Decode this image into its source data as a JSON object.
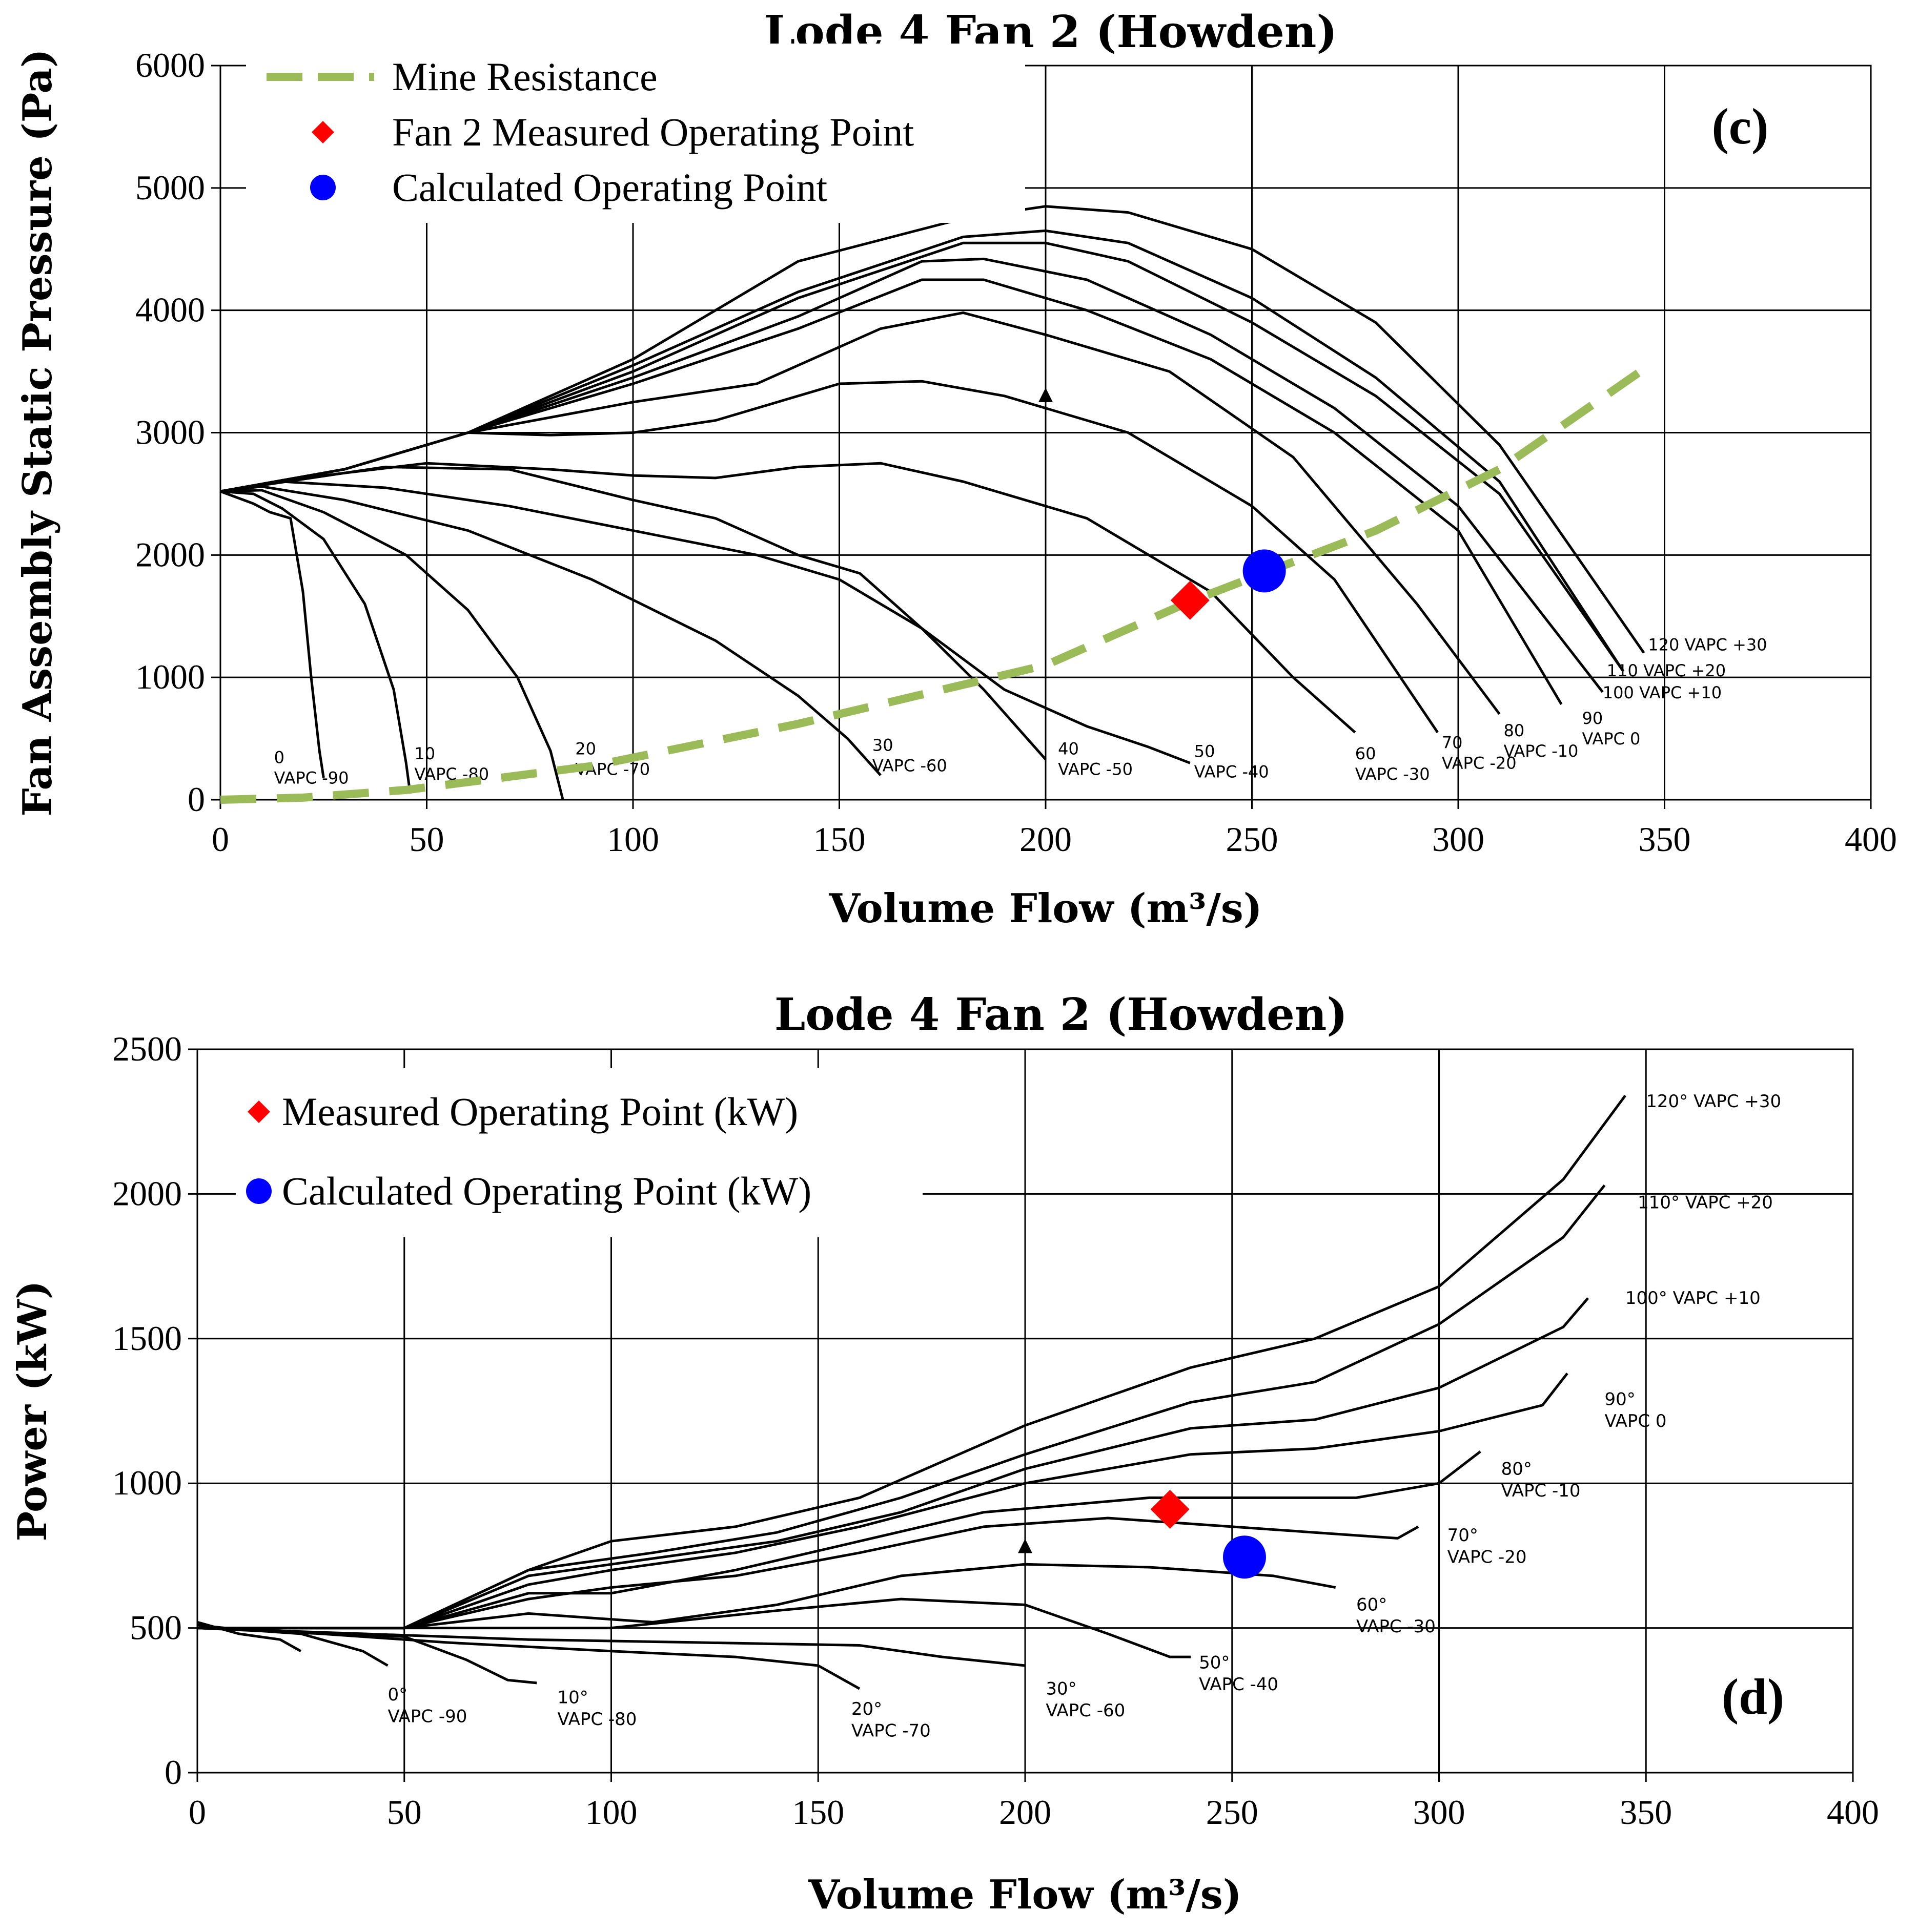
{
  "chart_data": [
    {
      "type": "line",
      "panel_label": "(c)",
      "title": "Lode 4 Fan 2 (Howden)",
      "xlabel": "Volume Flow (m³/s)",
      "ylabel": "Fan Assembly Static Pressure (Pa)",
      "xlim": [
        0,
        400
      ],
      "ylim": [
        0,
        6000
      ],
      "xticks": [
        "0",
        "50",
        "100",
        "150",
        "200",
        "250",
        "300",
        "350",
        "400"
      ],
      "yticks": [
        "0",
        "1000",
        "2000",
        "3000",
        "4000",
        "5000",
        "6000"
      ],
      "grid": true,
      "legend_position": "top-left",
      "legend": [
        {
          "label": "Mine Resistance",
          "marker": "dashed-line",
          "color": "#9bbb59"
        },
        {
          "label": "Fan 2 Measured Operating Point",
          "marker": "diamond",
          "color": "#ff0000"
        },
        {
          "label": "Calculated Operating Point",
          "marker": "circle",
          "color": "#0000ff"
        }
      ],
      "mine_resistance": {
        "x": [
          0,
          20,
          45,
          90,
          140,
          200,
          235,
          255,
          280,
          310,
          345
        ],
        "y": [
          0,
          17,
          80,
          275,
          620,
          1100,
          1620,
          1880,
          2200,
          2700,
          3520
        ],
        "color": "#9bbb59"
      },
      "measured_point": {
        "x": 235,
        "y": 1630,
        "color": "#ff0000"
      },
      "calculated_point": {
        "x": 253,
        "y": 1870,
        "color": "#0000ff"
      },
      "stall_marker": {
        "x": 200,
        "y": 3300
      },
      "series": [
        {
          "label_lines": [
            "0",
            "VAPC -90"
          ],
          "x": [
            0,
            8,
            12,
            17,
            20,
            22,
            24,
            25
          ],
          "y": [
            2520,
            2420,
            2350,
            2300,
            1700,
            1000,
            400,
            180
          ]
        },
        {
          "label_lines": [
            "10",
            "VAPC -80"
          ],
          "x": [
            0,
            8,
            15,
            25,
            35,
            42,
            45,
            46
          ],
          "y": [
            2520,
            2500,
            2380,
            2130,
            1600,
            900,
            300,
            50
          ]
        },
        {
          "label_lines": [
            "20",
            "VAPC -70"
          ],
          "x": [
            0,
            10,
            25,
            45,
            60,
            72,
            80,
            83
          ],
          "y": [
            2520,
            2530,
            2350,
            2000,
            1550,
            1000,
            400,
            0
          ]
        },
        {
          "label_lines": [
            "30",
            "VAPC -60"
          ],
          "x": [
            0,
            10,
            30,
            60,
            90,
            120,
            140,
            152,
            160
          ],
          "y": [
            2520,
            2560,
            2450,
            2200,
            1800,
            1300,
            850,
            500,
            200
          ]
        },
        {
          "label_lines": [
            "40",
            "VAPC -50"
          ],
          "x": [
            0,
            15,
            40,
            70,
            100,
            130,
            150,
            170,
            185,
            200
          ],
          "y": [
            2520,
            2600,
            2550,
            2400,
            2200,
            2000,
            1800,
            1400,
            900,
            330
          ]
        },
        {
          "label_lines": [
            "50",
            "VAPC -40"
          ],
          "x": [
            0,
            20,
            40,
            70,
            100,
            120,
            140,
            155,
            170,
            190,
            210,
            225,
            235
          ],
          "y": [
            2520,
            2620,
            2720,
            2700,
            2450,
            2300,
            2000,
            1850,
            1400,
            900,
            600,
            430,
            300
          ]
        },
        {
          "label_lines": [
            "60",
            "VAPC -30"
          ],
          "x": [
            0,
            25,
            50,
            80,
            100,
            120,
            140,
            160,
            180,
            210,
            240,
            260,
            275
          ],
          "y": [
            2520,
            2650,
            2750,
            2700,
            2650,
            2630,
            2720,
            2750,
            2600,
            2300,
            1700,
            1000,
            550
          ]
        },
        {
          "label_lines": [
            "70",
            "VAPC -20"
          ],
          "x": [
            0,
            30,
            60,
            80,
            100,
            120,
            150,
            170,
            190,
            220,
            250,
            270,
            295
          ],
          "y": [
            2520,
            2700,
            3000,
            2980,
            3000,
            3100,
            3400,
            3420,
            3300,
            3000,
            2400,
            1800,
            550
          ]
        },
        {
          "label_lines": [
            "80",
            "VAPC -10"
          ],
          "x": [
            0,
            30,
            60,
            100,
            130,
            160,
            180,
            200,
            230,
            260,
            290,
            310
          ],
          "y": [
            2520,
            2700,
            3000,
            3250,
            3400,
            3850,
            3980,
            3800,
            3500,
            2800,
            1600,
            700
          ]
        },
        {
          "label_lines": [
            "90",
            "VAPC 0"
          ],
          "x": [
            0,
            30,
            60,
            100,
            140,
            170,
            185,
            210,
            240,
            270,
            300,
            325
          ],
          "y": [
            2520,
            2700,
            3000,
            3400,
            3850,
            4250,
            4250,
            4000,
            3600,
            3000,
            2200,
            780
          ]
        },
        {
          "label_lines": [
            "100 VAPC +10"
          ],
          "x": [
            0,
            30,
            60,
            100,
            140,
            170,
            185,
            210,
            240,
            270,
            300,
            335
          ],
          "y": [
            2520,
            2700,
            3000,
            3450,
            3950,
            4400,
            4420,
            4250,
            3800,
            3200,
            2400,
            880
          ]
        },
        {
          "label_lines": [
            "110 VAPC +20"
          ],
          "x": [
            0,
            30,
            60,
            100,
            140,
            180,
            200,
            220,
            250,
            280,
            310,
            340
          ],
          "y": [
            2520,
            2700,
            3000,
            3500,
            4100,
            4550,
            4550,
            4400,
            3900,
            3300,
            2500,
            1050
          ]
        },
        {
          "label_lines": [
            "110 VAPC +20"
          ],
          "x": [
            0,
            30,
            60,
            100,
            140,
            180,
            200,
            220,
            250,
            280,
            310,
            340
          ],
          "y": [
            2520,
            2700,
            3000,
            3550,
            4150,
            4600,
            4650,
            4550,
            4100,
            3450,
            2600,
            1050
          ]
        },
        {
          "label_lines": [
            "120 VAPC +30"
          ],
          "x": [
            0,
            30,
            60,
            100,
            140,
            180,
            200,
            220,
            250,
            280,
            310,
            345
          ],
          "y": [
            2520,
            2700,
            3000,
            3600,
            4400,
            4750,
            4850,
            4800,
            4500,
            3900,
            2900,
            1200
          ]
        }
      ],
      "curve_label_positions": [
        {
          "x": 13,
          "y": 300
        },
        {
          "x": 47,
          "y": 330
        },
        {
          "x": 86,
          "y": 370
        },
        {
          "x": 158,
          "y": 400
        },
        {
          "x": 203,
          "y": 370
        },
        {
          "x": 236,
          "y": 350
        },
        {
          "x": 275,
          "y": 330
        },
        {
          "x": 296,
          "y": 420
        },
        {
          "x": 311,
          "y": 520
        },
        {
          "x": 330,
          "y": 620
        },
        {
          "x": 335,
          "y": 830
        },
        {
          "x": 336,
          "y": 1010
        },
        {
          "x": 336,
          "y": 1010
        },
        {
          "x": 346,
          "y": 1220
        }
      ]
    },
    {
      "type": "line",
      "panel_label": "(d)",
      "title": "Lode 4 Fan 2 (Howden)",
      "xlabel": "Volume Flow (m³/s)",
      "ylabel": "Power (kW)",
      "xlim": [
        0,
        400
      ],
      "ylim": [
        0,
        2500
      ],
      "xticks": [
        "0",
        "50",
        "100",
        "150",
        "200",
        "250",
        "300",
        "350",
        "400"
      ],
      "yticks": [
        "0",
        "500",
        "1000",
        "1500",
        "2000",
        "2500"
      ],
      "grid": true,
      "legend_position": "top-left",
      "legend": [
        {
          "label": "Measured Operating Point (kW)",
          "marker": "diamond",
          "color": "#ff0000"
        },
        {
          "label": "Calculated Operating Point (kW)",
          "marker": "circle",
          "color": "#0000ff"
        }
      ],
      "measured_point": {
        "x": 235,
        "y": 910,
        "color": "#ff0000"
      },
      "calculated_point": {
        "x": 253,
        "y": 745,
        "color": "#0000ff"
      },
      "stall_marker": {
        "x": 200,
        "y": 780
      },
      "series": [
        {
          "label_lines": [
            "0°",
            "VAPC -90"
          ],
          "x": [
            0,
            10,
            20,
            25
          ],
          "y": [
            520,
            480,
            460,
            420
          ]
        },
        {
          "label_lines": [
            "0°",
            "VAPC -90"
          ],
          "x": [
            0,
            10,
            25,
            40,
            46
          ],
          "y": [
            510,
            495,
            480,
            420,
            370
          ]
        },
        {
          "label_lines": [
            "10°",
            "VAPC -80"
          ],
          "x": [
            0,
            20,
            50,
            65,
            75,
            82
          ],
          "y": [
            500,
            490,
            470,
            390,
            320,
            310
          ]
        },
        {
          "label_lines": [
            "20°",
            "VAPC -70"
          ],
          "x": [
            0,
            30,
            60,
            100,
            130,
            150,
            155,
            160
          ],
          "y": [
            500,
            480,
            450,
            420,
            400,
            370,
            330,
            290
          ]
        },
        {
          "label_lines": [
            "30°",
            "VAPC -60"
          ],
          "x": [
            0,
            40,
            80,
            120,
            160,
            180,
            200
          ],
          "y": [
            500,
            480,
            460,
            450,
            440,
            400,
            370
          ]
        },
        {
          "label_lines": [
            "50°",
            "VAPC -40"
          ],
          "x": [
            0,
            50,
            100,
            140,
            170,
            200,
            220,
            235,
            240
          ],
          "y": [
            500,
            500,
            500,
            560,
            600,
            580,
            480,
            400,
            400
          ]
        },
        {
          "label_lines": [
            "60°",
            "VAPC -30"
          ],
          "x": [
            0,
            50,
            80,
            110,
            140,
            170,
            200,
            230,
            260,
            275
          ],
          "y": [
            500,
            500,
            550,
            520,
            580,
            680,
            720,
            710,
            680,
            640
          ]
        },
        {
          "label_lines": [
            "70°",
            "VAPC -20"
          ],
          "x": [
            0,
            50,
            80,
            100,
            130,
            160,
            190,
            220,
            250,
            280,
            290,
            295
          ],
          "y": [
            500,
            500,
            600,
            640,
            680,
            760,
            850,
            880,
            850,
            820,
            810,
            850
          ]
        },
        {
          "label_lines": [
            "80°",
            "VAPC -10"
          ],
          "x": [
            0,
            50,
            80,
            100,
            130,
            160,
            190,
            230,
            260,
            280,
            300,
            310
          ],
          "y": [
            500,
            500,
            620,
            620,
            700,
            800,
            900,
            950,
            950,
            950,
            1000,
            1110
          ]
        },
        {
          "label_lines": [
            "90°",
            "VAPC 0"
          ],
          "x": [
            0,
            50,
            80,
            100,
            130,
            160,
            200,
            240,
            270,
            300,
            325,
            331
          ],
          "y": [
            500,
            500,
            650,
            700,
            760,
            850,
            1000,
            1100,
            1120,
            1180,
            1270,
            1380
          ]
        },
        {
          "label_lines": [
            "100° VAPC +10"
          ],
          "x": [
            0,
            50,
            80,
            110,
            140,
            170,
            200,
            240,
            270,
            300,
            330,
            336
          ],
          "y": [
            500,
            500,
            680,
            740,
            800,
            900,
            1050,
            1190,
            1220,
            1330,
            1540,
            1640
          ]
        },
        {
          "label_lines": [
            "110° VAPC +20"
          ],
          "x": [
            0,
            50,
            80,
            110,
            140,
            170,
            200,
            240,
            270,
            300,
            330,
            340
          ],
          "y": [
            500,
            500,
            700,
            760,
            830,
            950,
            1100,
            1280,
            1350,
            1550,
            1850,
            2030
          ]
        },
        {
          "label_lines": [
            "120° VAPC +30"
          ],
          "x": [
            0,
            50,
            80,
            100,
            130,
            160,
            200,
            240,
            270,
            300,
            330,
            345
          ],
          "y": [
            500,
            500,
            700,
            800,
            850,
            950,
            1200,
            1400,
            1500,
            1680,
            2050,
            2340
          ]
        }
      ],
      "curve_label_positions": [
        {
          "x": 46,
          "y": 250
        },
        {
          "x": 46,
          "y": 250
        },
        {
          "x": 87,
          "y": 240
        },
        {
          "x": 158,
          "y": 200
        },
        {
          "x": 205,
          "y": 270
        },
        {
          "x": 242,
          "y": 360
        },
        {
          "x": 280,
          "y": 560
        },
        {
          "x": 302,
          "y": 800
        },
        {
          "x": 315,
          "y": 1030
        },
        {
          "x": 340,
          "y": 1270
        },
        {
          "x": 345,
          "y": 1620
        },
        {
          "x": 348,
          "y": 1950
        },
        {
          "x": 350,
          "y": 2300
        }
      ]
    }
  ]
}
